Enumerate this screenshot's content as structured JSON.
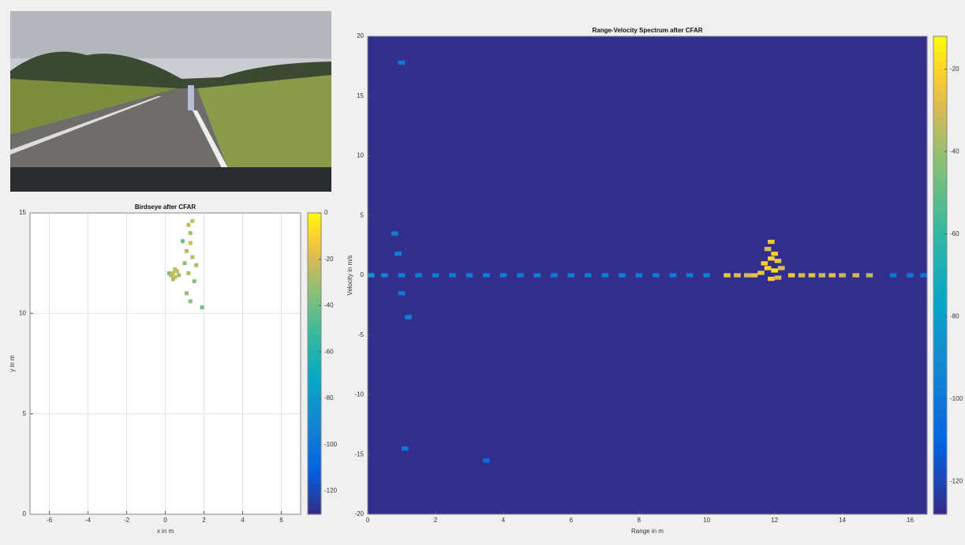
{
  "chart_data": [
    {
      "type": "scatter",
      "title": "Birdseye after CFAR",
      "x_label": "x in m",
      "y_label": "y in m",
      "xlim": [
        -7,
        7
      ],
      "xticks": [
        -6,
        -4,
        -2,
        0,
        2,
        4,
        6
      ],
      "ylim": [
        0,
        15
      ],
      "yticks": [
        0,
        5,
        10,
        15
      ],
      "grid": true,
      "colormap": "parula",
      "clim": [
        -130,
        0
      ],
      "cticks": [
        0,
        -20,
        -40,
        -60,
        -80,
        -100,
        -120
      ],
      "x": [
        0.3,
        0.4,
        0.5,
        0.6,
        0.4,
        0.7,
        0.2,
        0.5,
        1.2,
        1.3,
        1.3,
        1.1,
        1.4,
        1.0,
        1.2,
        1.5,
        1.1,
        1.3,
        1.9,
        1.6,
        0.9,
        1.4
      ],
      "y": [
        11.9,
        12.0,
        11.8,
        12.1,
        11.7,
        11.9,
        12.0,
        12.2,
        14.4,
        14.0,
        13.5,
        13.1,
        12.8,
        12.5,
        12.0,
        11.6,
        11.0,
        10.6,
        10.3,
        12.4,
        13.6,
        14.6
      ],
      "values": [
        -25,
        -22,
        -20,
        -24,
        -28,
        -30,
        -35,
        -26,
        -25,
        -30,
        -22,
        -28,
        -25,
        -32,
        -27,
        -35,
        -30,
        -33,
        -38,
        -29,
        -40,
        -24
      ]
    },
    {
      "type": "heatmap",
      "title": "Range-Velocity Spectrum after CFAR",
      "x_label": "Range in m",
      "y_label": "Velocity in m/s",
      "xlim": [
        0,
        16.5
      ],
      "xticks": [
        0,
        2,
        4,
        6,
        8,
        10,
        12,
        14,
        16
      ],
      "ylim": [
        -20,
        20
      ],
      "yticks": [
        -20,
        -15,
        -10,
        -5,
        0,
        5,
        10,
        15,
        20
      ],
      "grid": false,
      "colormap": "parula",
      "clim": [
        -128,
        -12
      ],
      "cticks": [
        -20,
        -40,
        -60,
        -80,
        -100,
        -120
      ],
      "x": [
        11.9,
        11.8,
        12.0,
        11.9,
        11.7,
        12.1,
        11.8,
        12.0,
        11.6,
        12.2,
        12.1,
        11.9,
        10.6,
        10.9,
        11.2,
        11.4,
        12.5,
        12.8,
        13.1,
        13.4,
        13.7,
        14.0,
        14.4,
        14.8,
        1.0,
        0.8,
        0.9,
        1.0,
        1.2,
        1.1,
        3.5,
        0.1,
        0.5,
        1.0,
        1.5,
        2.0,
        2.5,
        3.0,
        3.5,
        4.0,
        4.5,
        5.0,
        5.5,
        6.0,
        6.5,
        7.0,
        7.5,
        8.0,
        8.5,
        9.0,
        9.5,
        10.0,
        15.5,
        16.0,
        16.4
      ],
      "y": [
        2.8,
        2.2,
        1.8,
        1.4,
        1.0,
        1.2,
        0.6,
        0.4,
        0.2,
        0.6,
        -0.2,
        -0.3,
        0,
        0,
        0,
        0,
        0,
        0,
        0,
        0,
        0,
        0,
        0,
        0,
        17.8,
        3.5,
        1.8,
        -1.5,
        -3.5,
        -14.5,
        -15.5,
        0,
        0,
        0,
        0,
        0,
        0,
        0,
        0,
        0,
        0,
        0,
        0,
        0,
        0,
        0,
        0,
        0,
        0,
        0,
        0,
        0,
        0,
        0,
        0
      ],
      "values": [
        -25,
        -30,
        -22,
        -20,
        -22,
        -25,
        -20,
        -18,
        -25,
        -28,
        -30,
        -22,
        -25,
        -28,
        -30,
        -26,
        -24,
        -30,
        -27,
        -32,
        -28,
        -33,
        -30,
        -35,
        -100,
        -95,
        -98,
        -100,
        -95,
        -100,
        -105,
        -85,
        -95,
        -98,
        -98,
        -98,
        -98,
        -98,
        -98,
        -98,
        -98,
        -98,
        -98,
        -98,
        -98,
        -98,
        -98,
        -98,
        -98,
        -98,
        -98,
        -98,
        -100,
        -100,
        -100
      ]
    }
  ]
}
